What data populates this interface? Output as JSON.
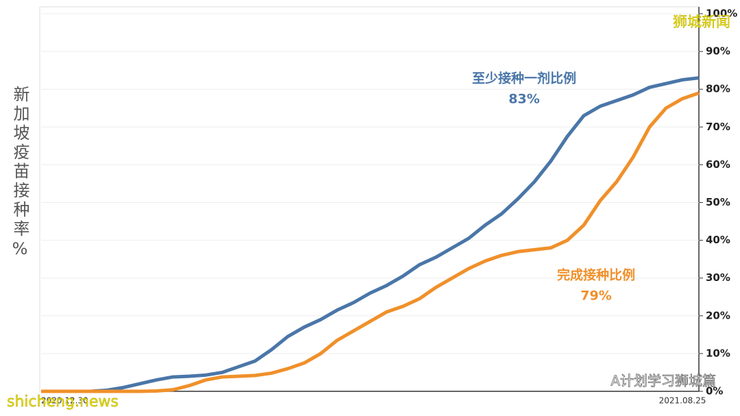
{
  "chart_data": {
    "type": "line",
    "y_label": "新加坡疫苗接种率%",
    "categories": [
      "2020.12.30",
      null,
      null,
      null,
      null,
      null,
      null,
      null,
      null,
      null,
      null,
      null,
      null,
      null,
      null,
      null,
      null,
      null,
      null,
      null,
      null,
      null,
      null,
      null,
      null,
      null,
      null,
      null,
      null,
      null,
      null,
      null,
      null,
      null,
      null,
      null,
      null,
      null,
      null,
      "2021.08.25",
      null
    ],
    "series": [
      {
        "name": "至少接种一剂比例",
        "color": "#4a76a8",
        "value_label": "83%",
        "values": [
          0,
          0,
          0,
          0,
          0.3,
          1,
          2,
          3,
          3.8,
          4,
          4.3,
          5,
          6.5,
          8,
          11,
          14.5,
          17,
          19,
          21.5,
          23.5,
          26,
          28,
          30.5,
          33.5,
          35.5,
          38,
          40.5,
          44,
          47,
          51,
          55.5,
          61,
          67.5,
          73,
          75.5,
          77,
          78.5,
          80.5,
          81.5,
          82.5,
          83
        ]
      },
      {
        "name": "完成接种比例",
        "color": "#f0902a",
        "value_label": "79%",
        "values": [
          0,
          0,
          0,
          0,
          0,
          0,
          0,
          0.1,
          0.4,
          1.5,
          3,
          3.8,
          4,
          4.2,
          4.8,
          6,
          7.5,
          10,
          13.5,
          16,
          18.5,
          21,
          22.5,
          24.5,
          27.5,
          30,
          32.5,
          34.5,
          36,
          37,
          37.5,
          38,
          40,
          44,
          50.5,
          55.5,
          62,
          70,
          75,
          77.5,
          79
        ]
      }
    ],
    "ylim": [
      0,
      100
    ],
    "yticks": [
      {
        "value": 0,
        "label": "0%"
      },
      {
        "value": 10,
        "label": "10%"
      },
      {
        "value": 20,
        "label": "20%"
      },
      {
        "value": 30,
        "label": "30%"
      },
      {
        "value": 40,
        "label": "40%"
      },
      {
        "value": 50,
        "label": "50%"
      },
      {
        "value": 60,
        "label": "60%"
      },
      {
        "value": 70,
        "label": "70%"
      },
      {
        "value": 80,
        "label": "80%"
      },
      {
        "value": 90,
        "label": "90%"
      },
      {
        "value": 100,
        "label": "100%"
      }
    ],
    "grid": true,
    "watermarks": [
      "狮城新闻",
      "A计划学习狮城篇",
      "shicheng.news"
    ]
  }
}
